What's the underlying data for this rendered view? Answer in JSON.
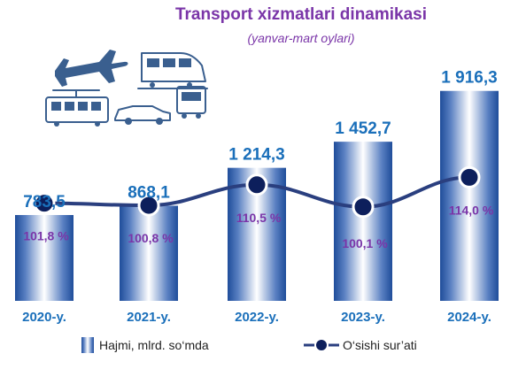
{
  "chart_data": {
    "type": "bar",
    "title": "Transport xizmatlari dinamikasi",
    "subtitle": "(yanvar-mart oylari)",
    "categories": [
      "2020-y.",
      "2021-y.",
      "2022-y.",
      "2023-y.",
      "2024-y."
    ],
    "series": [
      {
        "name": "Hajmi, mlrd. so‘mda",
        "type": "bar",
        "values": [
          783.5,
          868.1,
          1214.3,
          1452.7,
          1916.3
        ],
        "labels": [
          "783,5",
          "868,1",
          "1 214,3",
          "1 452,7",
          "1 916,3"
        ]
      },
      {
        "name": "O‘sishi sur’ati",
        "type": "line",
        "values": [
          101.8,
          100.8,
          110.5,
          100.1,
          114.0
        ],
        "labels": [
          "101,8 %",
          "100,8 %",
          "110,5 %",
          "100,1 %",
          "114,0 %"
        ]
      }
    ],
    "ylim": [
      0,
      2100
    ],
    "legend_position": "bottom",
    "grid": false,
    "colors": {
      "bar_edge": "#1f4d9a",
      "bar_center": "#ffffff",
      "line": "#2a3f7f",
      "marker": "#0d1f5c",
      "value_label": "#1a6fba",
      "pct_label": "#7a35a8",
      "title": "#7a35a8"
    }
  },
  "icons": [
    "airplane-icon",
    "train-icon",
    "tram-icon",
    "car-icon",
    "bus-icon"
  ]
}
